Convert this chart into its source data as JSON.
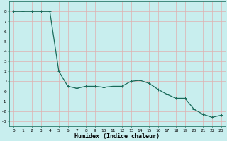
{
  "x": [
    0,
    1,
    2,
    3,
    4,
    5,
    6,
    7,
    8,
    9,
    10,
    11,
    12,
    13,
    14,
    15,
    16,
    17,
    18,
    19,
    20,
    21,
    22,
    23
  ],
  "y": [
    8,
    8,
    8,
    8,
    8,
    2,
    0.5,
    0.3,
    0.5,
    0.5,
    0.4,
    0.5,
    0.5,
    1.0,
    1.1,
    0.8,
    0.2,
    -0.3,
    -0.7,
    -0.7,
    -1.8,
    -2.3,
    -2.6,
    -2.4
  ],
  "line_color": "#1a6b5a",
  "marker": "+",
  "marker_size": 2.5,
  "bg_color": "#c8eeee",
  "grid_color": "#e0b0b0",
  "xlabel": "Humidex (Indice chaleur)",
  "xlim": [
    -0.5,
    23.5
  ],
  "ylim": [
    -3.5,
    9.0
  ],
  "xticks": [
    0,
    1,
    2,
    3,
    4,
    5,
    6,
    7,
    8,
    9,
    10,
    11,
    12,
    13,
    14,
    15,
    16,
    17,
    18,
    19,
    20,
    21,
    22,
    23
  ],
  "yticks": [
    -3,
    -2,
    -1,
    0,
    1,
    2,
    3,
    4,
    5,
    6,
    7,
    8
  ],
  "tick_fontsize": 4.5,
  "label_fontsize": 6.0,
  "line_width": 0.9
}
